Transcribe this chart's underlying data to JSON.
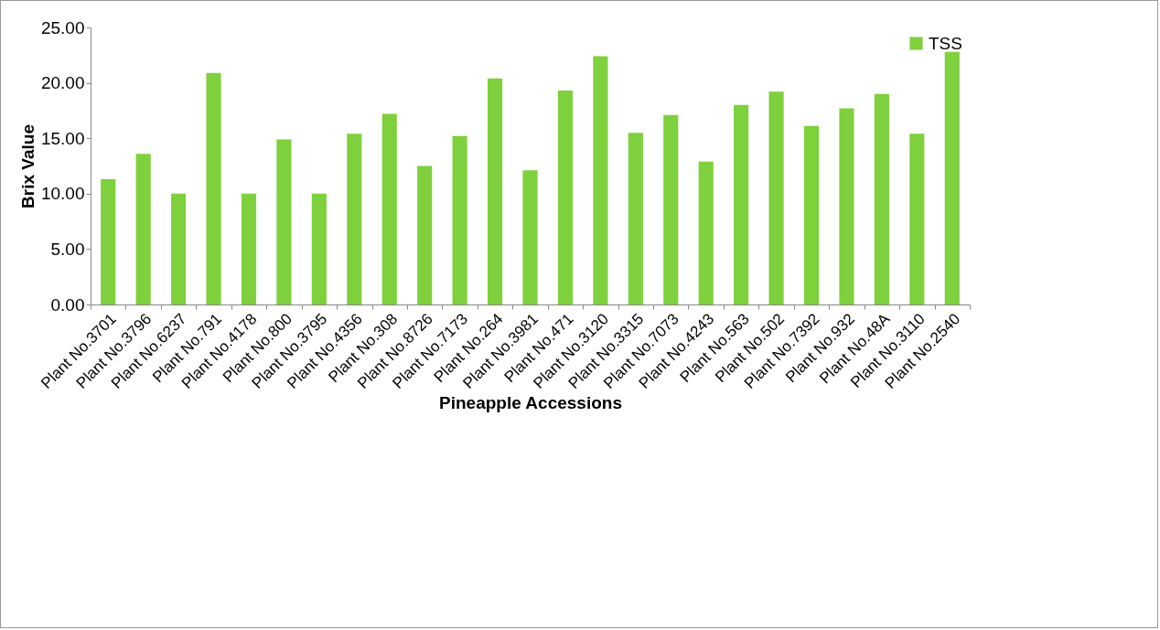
{
  "chart_data": {
    "type": "bar",
    "xlabel": "Pineapple Accessions",
    "ylabel": "Brix Value",
    "categories": [
      "Plant No.3701",
      "Plant No.3796",
      "Plant No.6237",
      "Plant No.791",
      "Plant No.4178",
      "Plant No.800",
      "Plant No.3795",
      "Plant No.4356",
      "Plant No.308",
      "Plant No.8726",
      "Plant No.7173",
      "Plant No.264",
      "Plant No.3981",
      "Plant No.471",
      "Plant No.3120",
      "Plant No.3315",
      "Plant No.7073",
      "Plant No.4243",
      "Plant No.563",
      "Plant No.502",
      "Plant No.7392",
      "Plant No.932",
      "Plant No.48A",
      "Plant No.3110",
      "Plant No.2540"
    ],
    "series": [
      {
        "name": "TSS",
        "color": "#7ed03c",
        "values": [
          11.3,
          13.6,
          10.0,
          20.9,
          10.0,
          14.9,
          10.0,
          15.4,
          17.2,
          12.5,
          15.2,
          20.4,
          12.1,
          19.3,
          22.4,
          15.5,
          17.1,
          12.9,
          18.0,
          19.2,
          16.1,
          17.7,
          19.0,
          15.4,
          22.8
        ]
      }
    ],
    "ylim": [
      0,
      25
    ],
    "yticks": [
      {
        "value": 0,
        "label": "0.00"
      },
      {
        "value": 5,
        "label": "5.00"
      },
      {
        "value": 10,
        "label": "10.00"
      },
      {
        "value": 15,
        "label": "15.00"
      },
      {
        "value": 20,
        "label": "20.00"
      },
      {
        "value": 25,
        "label": "25.00"
      }
    ],
    "grid": false,
    "legend": "top right"
  }
}
